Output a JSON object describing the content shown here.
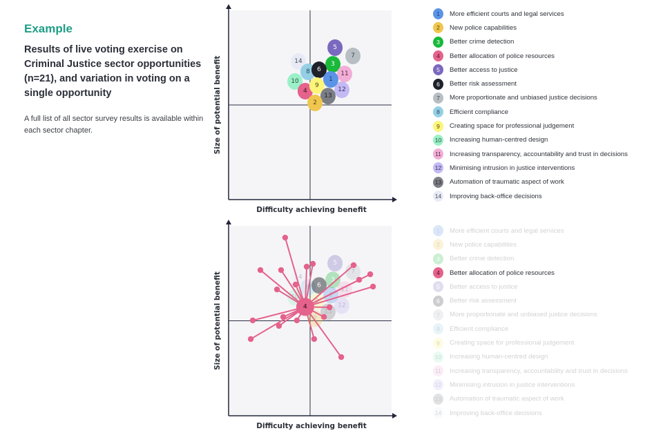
{
  "intro": {
    "kicker": "Example",
    "headline": "Results of live voting exercise on Criminal Justice sector opportunities (n=21), and variation in voting on a single opportunity",
    "note": "A full list of all sector survey results is available within each sector chapter."
  },
  "opportunities": [
    {
      "id": 1,
      "label": "More efficient courts and legal services",
      "color": "#5b93e6",
      "text_color": "#1d3b73"
    },
    {
      "id": 2,
      "label": "New police capabilities",
      "color": "#f0c64e",
      "text_color": "#5a4511"
    },
    {
      "id": 3,
      "label": "Better crime detection",
      "color": "#19b93a",
      "text_color": "#ffffff"
    },
    {
      "id": 4,
      "label": "Better allocation of police resources",
      "color": "#e4628b",
      "text_color": "#4a1024"
    },
    {
      "id": 5,
      "label": "Better access to justice",
      "color": "#7b68bf",
      "text_color": "#ffffff"
    },
    {
      "id": 6,
      "label": "Better risk assessment",
      "color": "#1f222a",
      "text_color": "#ffffff"
    },
    {
      "id": 7,
      "label": "More proportionate and unbiased justice decisions",
      "color": "#b7bec4",
      "text_color": "#3d4349"
    },
    {
      "id": 8,
      "label": "Efficient compliance",
      "color": "#95cfe5",
      "text_color": "#23485a"
    },
    {
      "id": 9,
      "label": "Creating space for professional judgement",
      "color": "#fdf57a",
      "text_color": "#4f4a10"
    },
    {
      "id": 10,
      "label": "Increasing human-centred design",
      "color": "#9cf0c8",
      "text_color": "#21513b"
    },
    {
      "id": 11,
      "label": "Increasing transparency, accountability and trust in decisions",
      "color": "#f2aed6",
      "text_color": "#5a2946"
    },
    {
      "id": 12,
      "label": "Minimising intrusion in justice interventions",
      "color": "#c3b9f3",
      "text_color": "#3d356a"
    },
    {
      "id": 13,
      "label": "Automation of traumatic aspect of work",
      "color": "#7c7e85",
      "text_color": "#1f2126"
    },
    {
      "id": 14,
      "label": "Improving back-office decisions",
      "color": "#e8eaf6",
      "text_color": "#4a4d5a"
    }
  ],
  "chart_data": [
    {
      "type": "scatter",
      "title": "Results of live voting exercise on Criminal Justice sector opportunities (n=21)",
      "xlabel": "Difficulty achieving benefit",
      "ylabel": "Size of potential benefit",
      "xlim": [
        0,
        10
      ],
      "ylim": [
        0,
        10
      ],
      "quadrant_lines": {
        "x": 5,
        "y": 5
      },
      "grid": false,
      "legend": "right",
      "points": [
        {
          "id": 1,
          "x": 6.27,
          "y": 6.35
        },
        {
          "id": 2,
          "x": 5.3,
          "y": 5.11
        },
        {
          "id": 3,
          "x": 6.4,
          "y": 7.15
        },
        {
          "id": 4,
          "x": 4.7,
          "y": 5.73
        },
        {
          "id": 5,
          "x": 6.53,
          "y": 8.03
        },
        {
          "id": 6,
          "x": 5.55,
          "y": 6.86
        },
        {
          "id": 7,
          "x": 7.63,
          "y": 7.59
        },
        {
          "id": 8,
          "x": 4.87,
          "y": 6.75
        },
        {
          "id": 9,
          "x": 5.42,
          "y": 6.02
        },
        {
          "id": 10,
          "x": 4.07,
          "y": 6.24
        },
        {
          "id": 11,
          "x": 7.12,
          "y": 6.64
        },
        {
          "id": 12,
          "x": 6.95,
          "y": 5.8
        },
        {
          "id": 13,
          "x": 6.1,
          "y": 5.47
        },
        {
          "id": 14,
          "x": 4.28,
          "y": 7.3
        }
      ]
    },
    {
      "type": "scatter",
      "title": "Variation in voting on a single opportunity",
      "xlabel": "Difficulty achieving benefit",
      "ylabel": "Size of potential benefit",
      "xlim": [
        0,
        10
      ],
      "ylim": [
        0,
        10
      ],
      "quadrant_lines": {
        "x": 5,
        "y": 5
      },
      "grid": false,
      "legend": "right",
      "highlight_id": 4,
      "faded_opacity": 0.3,
      "votes_color": "#e4628b",
      "votes": [
        {
          "x": 3.47,
          "y": 9.38
        },
        {
          "x": 1.95,
          "y": 7.67
        },
        {
          "x": 3.22,
          "y": 7.67
        },
        {
          "x": 4.79,
          "y": 7.85
        },
        {
          "x": 5.17,
          "y": 8.0
        },
        {
          "x": 7.67,
          "y": 7.93
        },
        {
          "x": 8.69,
          "y": 7.45
        },
        {
          "x": 8.01,
          "y": 7.16
        },
        {
          "x": 8.86,
          "y": 6.8
        },
        {
          "x": 4.11,
          "y": 6.91
        },
        {
          "x": 2.97,
          "y": 6.65
        },
        {
          "x": 6.19,
          "y": 5.71
        },
        {
          "x": 5.85,
          "y": 5.2
        },
        {
          "x": 1.48,
          "y": 5.02
        },
        {
          "x": 3.35,
          "y": 5.2
        },
        {
          "x": 4.19,
          "y": 5.02
        },
        {
          "x": 3.09,
          "y": 4.73
        },
        {
          "x": 1.36,
          "y": 4.04
        },
        {
          "x": 5.25,
          "y": 4.04
        },
        {
          "x": 6.91,
          "y": 3.09
        }
      ]
    }
  ]
}
